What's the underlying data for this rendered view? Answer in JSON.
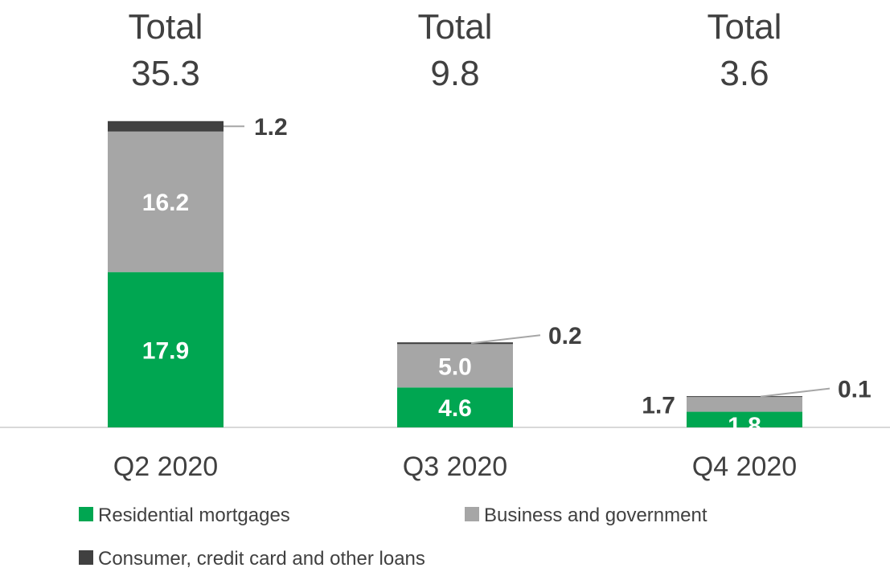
{
  "chart_data": {
    "type": "bar",
    "stacked": true,
    "categories": [
      "Q2 2020",
      "Q3 2020",
      "Q4 2020"
    ],
    "totals_prefix": "Total",
    "totals": [
      "35.3",
      "9.8",
      "3.6"
    ],
    "series": [
      {
        "name": "Residential mortgages",
        "values": [
          17.9,
          4.6,
          1.8
        ],
        "labels": [
          "17.9",
          "4.6",
          "1.8"
        ],
        "color": "#00A651"
      },
      {
        "name": "Business and government",
        "values": [
          16.2,
          5.0,
          1.7
        ],
        "labels": [
          "16.2",
          "5.0",
          "1.7"
        ],
        "color": "#A6A6A6"
      },
      {
        "name": "Consumer, credit card and other loans",
        "values": [
          1.2,
          0.2,
          0.1
        ],
        "labels": [
          "1.2",
          "0.2",
          "0.1"
        ],
        "color": "#404040"
      }
    ],
    "grid": false,
    "legend_position": "bottom"
  }
}
